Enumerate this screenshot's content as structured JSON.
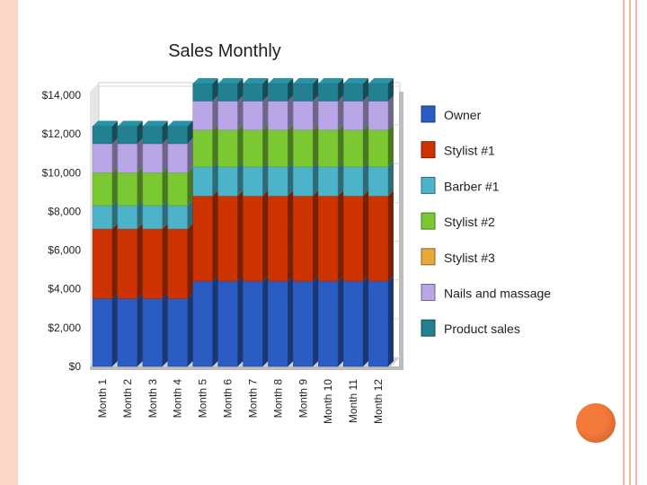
{
  "chart_data": {
    "type": "bar",
    "stacked": true,
    "title": "Sales Monthly",
    "categories": [
      "Month 1",
      "Month 2",
      "Month 3",
      "Month 4",
      "Month 5",
      "Month 6",
      "Month 7",
      "Month 8",
      "Month 9",
      "Month 10",
      "Month 11",
      "Month 12"
    ],
    "yticks": [
      "$0",
      "$2,000",
      "$4,000",
      "$6,000",
      "$8,000",
      "$10,000",
      "$12,000",
      "$14,000"
    ],
    "ylim": [
      0,
      14000
    ],
    "grid": true,
    "legend_position": "right",
    "series": [
      {
        "name": "Owner",
        "color": "#2a5cc4",
        "values": [
          3500,
          3500,
          3500,
          3500,
          4400,
          4400,
          4400,
          4400,
          4400,
          4400,
          4400,
          4400
        ]
      },
      {
        "name": "Stylist #1",
        "color": "#cc3300",
        "values": [
          3600,
          3600,
          3600,
          3600,
          4400,
          4400,
          4400,
          4400,
          4400,
          4400,
          4400,
          4400
        ]
      },
      {
        "name": "Barber #1",
        "color": "#4db3c9",
        "values": [
          1200,
          1200,
          1200,
          1200,
          1500,
          1500,
          1500,
          1500,
          1500,
          1500,
          1500,
          1500
        ]
      },
      {
        "name": "Stylist #2",
        "color": "#7ac933",
        "values": [
          1700,
          1700,
          1700,
          1700,
          1900,
          1900,
          1900,
          1900,
          1900,
          1900,
          1900,
          1900
        ]
      },
      {
        "name": "Stylist #3",
        "color": "#e9a93a",
        "values": [
          0,
          0,
          0,
          0,
          0,
          0,
          0,
          0,
          0,
          0,
          0,
          0
        ]
      },
      {
        "name": "Nails and massage",
        "color": "#b9a6e6",
        "values": [
          1500,
          1500,
          1500,
          1500,
          1500,
          1500,
          1500,
          1500,
          1500,
          1500,
          1500,
          1500
        ]
      },
      {
        "name": "Product sales",
        "color": "#238090",
        "values": [
          900,
          900,
          900,
          900,
          900,
          900,
          900,
          900,
          900,
          900,
          900,
          900
        ]
      }
    ]
  }
}
